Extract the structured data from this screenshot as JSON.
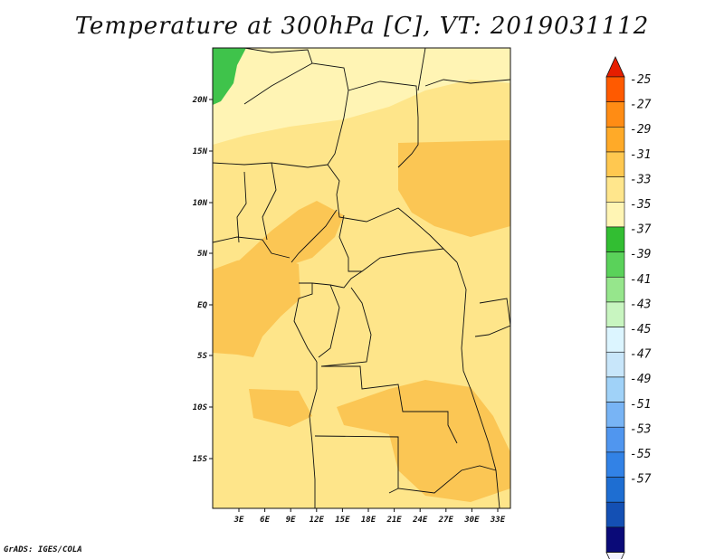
{
  "title": "Temperature at 300hPa [C], VT: 2019031112",
  "credit": "GrADS: IGES/COLA",
  "map": {
    "lat_labels": [
      "20N",
      "15N",
      "10N",
      "5N",
      "EQ",
      "5S",
      "10S",
      "15S"
    ],
    "lon_labels": [
      "3E",
      "6E",
      "9E",
      "12E",
      "15E",
      "18E",
      "21E",
      "24E",
      "27E",
      "30E",
      "33E"
    ]
  },
  "colorbar": {
    "labels": [
      "-25",
      "-27",
      "-29",
      "-31",
      "-33",
      "-35",
      "-37",
      "-39",
      "-41",
      "-43",
      "-45",
      "-47",
      "-49",
      "-51",
      "-53",
      "-55",
      "-57"
    ],
    "colors": [
      "#f0f0ff",
      "#0a0a78",
      "#1450b4",
      "#1e6ed2",
      "#3282e6",
      "#5096ef",
      "#78b4f5",
      "#a0d2f8",
      "#c8e6fa",
      "#dcf5ff",
      "#c8f5c0",
      "#96e68c",
      "#5ad25a",
      "#32be32",
      "#fff5b4",
      "#ffe68c",
      "#ffc850",
      "#ffaa28",
      "#ff8c14",
      "#ff5a00",
      "#e61e00"
    ]
  },
  "colors": {
    "c31": "#fee58a",
    "c29": "#fbc654",
    "c33": "#fff4b4",
    "c37": "#3fc34b"
  }
}
